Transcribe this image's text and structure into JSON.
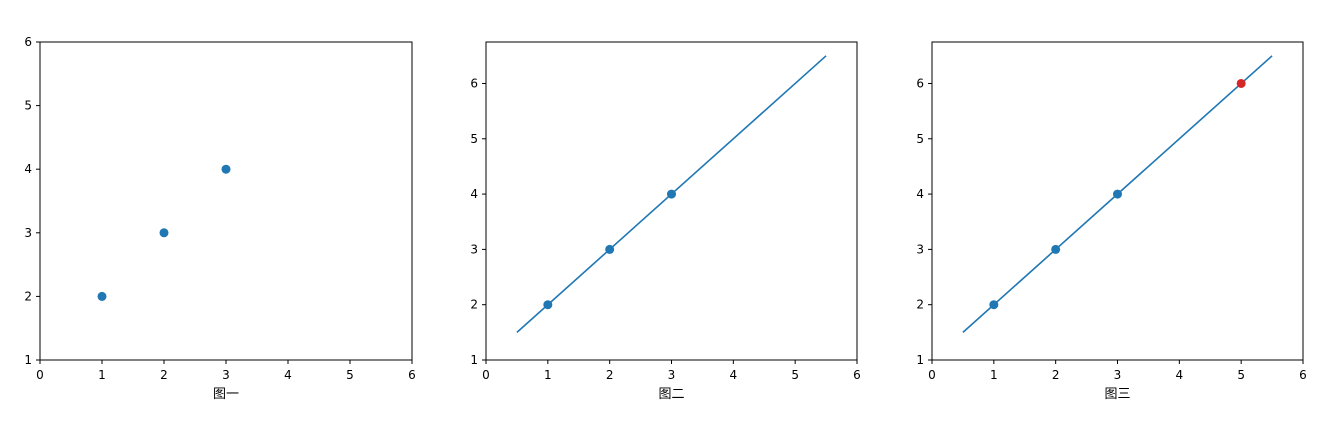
{
  "chart_data": [
    {
      "type": "scatter",
      "xlabel": "图一",
      "xlim": [
        0,
        6
      ],
      "ylim": [
        1,
        6
      ],
      "xticks": [
        0,
        1,
        2,
        3,
        4,
        5,
        6
      ],
      "yticks": [
        1,
        2,
        3,
        4,
        5,
        6
      ],
      "grid": false,
      "series": [
        {
          "kind": "scatter",
          "color": "#1f77b4",
          "points": [
            [
              1,
              2
            ],
            [
              2,
              3
            ],
            [
              3,
              4
            ]
          ]
        }
      ]
    },
    {
      "type": "line",
      "xlabel": "图二",
      "xlim": [
        0,
        6
      ],
      "ylim": [
        1,
        6.75
      ],
      "xticks": [
        0,
        1,
        2,
        3,
        4,
        5,
        6
      ],
      "yticks": [
        1,
        2,
        3,
        4,
        5,
        6
      ],
      "grid": false,
      "series": [
        {
          "kind": "line",
          "color": "#1f77b4",
          "points": [
            [
              0.5,
              1.5
            ],
            [
              5.5,
              6.5
            ]
          ]
        },
        {
          "kind": "scatter",
          "color": "#1f77b4",
          "points": [
            [
              1,
              2
            ],
            [
              2,
              3
            ],
            [
              3,
              4
            ]
          ]
        }
      ]
    },
    {
      "type": "line",
      "xlabel": "图三",
      "xlim": [
        0,
        6
      ],
      "ylim": [
        1,
        6.75
      ],
      "xticks": [
        0,
        1,
        2,
        3,
        4,
        5,
        6
      ],
      "yticks": [
        1,
        2,
        3,
        4,
        5,
        6
      ],
      "grid": false,
      "series": [
        {
          "kind": "line",
          "color": "#1f77b4",
          "points": [
            [
              0.5,
              1.5
            ],
            [
              5.5,
              6.5
            ]
          ]
        },
        {
          "kind": "scatter",
          "color": "#1f77b4",
          "points": [
            [
              1,
              2
            ],
            [
              2,
              3
            ],
            [
              3,
              4
            ]
          ]
        },
        {
          "kind": "scatter",
          "color": "#d62728",
          "points": [
            [
              5,
              6
            ]
          ]
        }
      ]
    }
  ]
}
